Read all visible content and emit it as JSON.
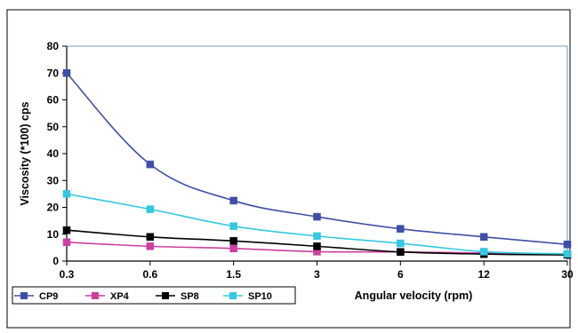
{
  "chart_data": {
    "type": "line",
    "categories": [
      "0.3",
      "0.6",
      "1.5",
      "3",
      "6",
      "12",
      "30"
    ],
    "xlabel": "Angular velocity (rpm)",
    "ylabel": "Viscosity (*100) cps",
    "ylim": [
      0,
      80
    ],
    "yticks": [
      0,
      10,
      20,
      30,
      40,
      50,
      60,
      70,
      80
    ],
    "grid": false,
    "legend_position": "bottom-left",
    "series": [
      {
        "name": "CP9",
        "color": "#3F4FA8",
        "marker": "square",
        "values": [
          70,
          36,
          22.5,
          16.5,
          12,
          9,
          6.2
        ]
      },
      {
        "name": "XP4",
        "color": "#CC3FA0",
        "marker": "square",
        "values": [
          7,
          5.5,
          4.7,
          3.5,
          3.4,
          3.0,
          2.5
        ]
      },
      {
        "name": "SP8",
        "color": "#000000",
        "marker": "square",
        "values": [
          11.5,
          9,
          7.5,
          5.5,
          3.4,
          2.6,
          2.3
        ]
      },
      {
        "name": "SP10",
        "color": "#33C8E0",
        "marker": "square",
        "values": [
          25,
          19.3,
          13,
          9.3,
          6.6,
          3.5,
          2.7
        ]
      }
    ]
  }
}
